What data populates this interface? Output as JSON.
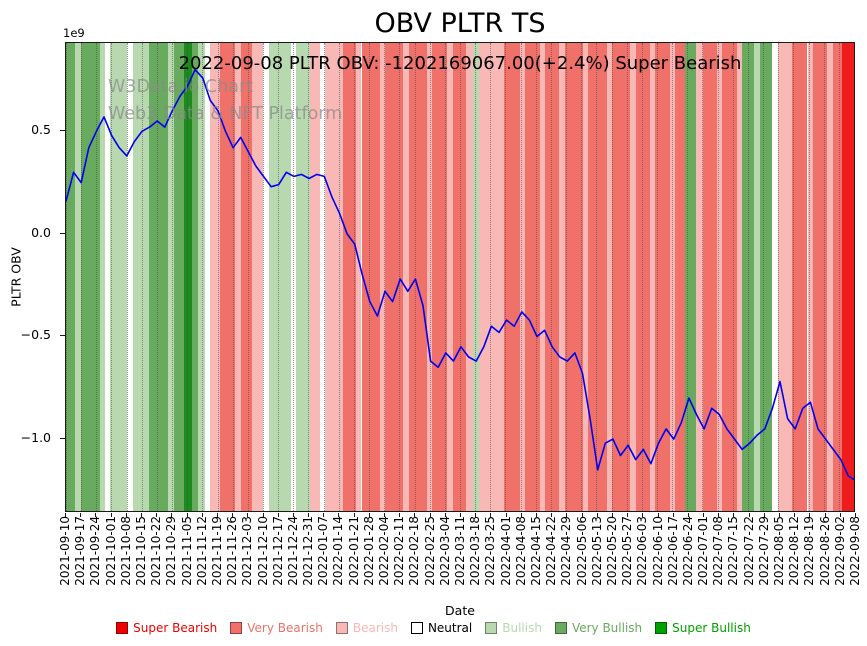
{
  "title": "OBV PLTR TS",
  "subtitle": "2022-09-08 PLTR OBV: -1202169067.00(+2.4%) Super Bearish",
  "watermark": {
    "line1": "W3Data.io Chart",
    "line2": "Web3 Data & NFT Platform"
  },
  "axes": {
    "ylabel": "PLTR OBV",
    "xlabel": "Date",
    "offset_text": "1e9"
  },
  "legend": [
    {
      "label": "Super Bearish",
      "color": "#ee0000"
    },
    {
      "label": "Very Bearish",
      "color": "#ef716a"
    },
    {
      "label": "Bearish",
      "color": "#f8b8b5"
    },
    {
      "label": "Neutral",
      "color": "#ffffff",
      "text_color": "#000000",
      "border": "#000000"
    },
    {
      "label": "Bullish",
      "color": "#b8d8b0"
    },
    {
      "label": "Very Bullish",
      "color": "#68aa5e"
    },
    {
      "label": "Super Bullish",
      "color": "#00a000"
    }
  ],
  "chart_data": {
    "type": "line",
    "title": "OBV PLTR TS",
    "series_name": "PLTR OBV",
    "line_color": "#0000f0",
    "unit_multiplier": "1e9",
    "ylim": [
      -1.36,
      0.93
    ],
    "yticks": [
      {
        "label": "0.5",
        "value": 0.5
      },
      {
        "label": "0.0",
        "value": 0.0
      },
      {
        "label": "−0.5",
        "value": -0.5
      },
      {
        "label": "−1.0",
        "value": -1.0
      }
    ],
    "x_tick_labels": [
      "2021-09-10",
      "2021-09-17",
      "2021-09-24",
      "2021-10-01",
      "2021-10-08",
      "2021-10-15",
      "2021-10-22",
      "2021-10-29",
      "2021-11-05",
      "2021-11-12",
      "2021-11-19",
      "2021-11-26",
      "2021-12-03",
      "2021-12-10",
      "2021-12-17",
      "2021-12-24",
      "2021-12-31",
      "2022-01-07",
      "2022-01-14",
      "2022-01-21",
      "2022-01-28",
      "2022-02-04",
      "2022-02-11",
      "2022-02-18",
      "2022-02-25",
      "2022-03-04",
      "2022-03-11",
      "2022-03-18",
      "2022-03-25",
      "2022-04-01",
      "2022-04-08",
      "2022-04-15",
      "2022-04-22",
      "2022-04-29",
      "2022-05-06",
      "2022-05-13",
      "2022-05-20",
      "2022-05-27",
      "2022-06-03",
      "2022-06-10",
      "2022-06-17",
      "2022-06-24",
      "2022-07-01",
      "2022-07-08",
      "2022-07-15",
      "2022-07-22",
      "2022-07-29",
      "2022-08-05",
      "2022-08-12",
      "2022-08-19",
      "2022-08-26",
      "2022-09-02",
      "2022-09-08"
    ],
    "values_unit_1e9": [
      0.16,
      0.3,
      0.25,
      0.42,
      0.5,
      0.57,
      0.48,
      0.42,
      0.38,
      0.45,
      0.5,
      0.52,
      0.55,
      0.52,
      0.6,
      0.67,
      0.72,
      0.8,
      0.76,
      0.65,
      0.6,
      0.5,
      0.42,
      0.47,
      0.4,
      0.33,
      0.28,
      0.23,
      0.24,
      0.3,
      0.28,
      0.29,
      0.27,
      0.29,
      0.28,
      0.18,
      0.1,
      0.0,
      -0.05,
      -0.2,
      -0.33,
      -0.4,
      -0.28,
      -0.33,
      -0.22,
      -0.28,
      -0.22,
      -0.35,
      -0.62,
      -0.65,
      -0.58,
      -0.62,
      -0.55,
      -0.6,
      -0.62,
      -0.55,
      -0.45,
      -0.48,
      -0.42,
      -0.45,
      -0.38,
      -0.42,
      -0.5,
      -0.47,
      -0.55,
      -0.6,
      -0.62,
      -0.58,
      -0.68,
      -0.9,
      -1.15,
      -1.02,
      -1.0,
      -1.08,
      -1.03,
      -1.1,
      -1.05,
      -1.12,
      -1.02,
      -0.95,
      -1.0,
      -0.92,
      -0.8,
      -0.88,
      -0.95,
      -0.85,
      -0.88,
      -0.95,
      -1.0,
      -1.05,
      -1.02,
      -0.98,
      -0.95,
      -0.85,
      -0.72,
      -0.9,
      -0.95,
      -0.85,
      -0.82,
      -0.95,
      -1.0,
      -1.05,
      -1.1,
      -1.18,
      -1.202
    ],
    "last_value": -1202169067.0,
    "last_change_pct": "+2.4%",
    "last_signal": "Super Bearish",
    "band_colors": {
      "super_bearish": "#ee1c1c",
      "very_bearish": "#ef716a",
      "bearish": "#f8b8b5",
      "neutral": "#ffffff",
      "bullish": "#b8d8b0",
      "very_bullish": "#68aa5e",
      "super_bullish": "#1d8a1d"
    },
    "bands": [
      {
        "from": 0.0,
        "to": 0.012,
        "sentiment": "very_bullish"
      },
      {
        "from": 0.012,
        "to": 0.019,
        "sentiment": "bullish"
      },
      {
        "from": 0.019,
        "to": 0.043,
        "sentiment": "very_bullish"
      },
      {
        "from": 0.043,
        "to": 0.05,
        "sentiment": "bullish"
      },
      {
        "from": 0.05,
        "to": 0.056,
        "sentiment": "neutral"
      },
      {
        "from": 0.056,
        "to": 0.078,
        "sentiment": "bullish"
      },
      {
        "from": 0.078,
        "to": 0.085,
        "sentiment": "neutral"
      },
      {
        "from": 0.085,
        "to": 0.105,
        "sentiment": "bullish"
      },
      {
        "from": 0.105,
        "to": 0.13,
        "sentiment": "very_bullish"
      },
      {
        "from": 0.13,
        "to": 0.137,
        "sentiment": "bullish"
      },
      {
        "from": 0.137,
        "to": 0.15,
        "sentiment": "very_bullish"
      },
      {
        "from": 0.15,
        "to": 0.16,
        "sentiment": "super_bullish"
      },
      {
        "from": 0.16,
        "to": 0.168,
        "sentiment": "very_bullish"
      },
      {
        "from": 0.168,
        "to": 0.176,
        "sentiment": "bullish"
      },
      {
        "from": 0.176,
        "to": 0.183,
        "sentiment": "neutral"
      },
      {
        "from": 0.183,
        "to": 0.196,
        "sentiment": "bearish"
      },
      {
        "from": 0.196,
        "to": 0.215,
        "sentiment": "very_bearish"
      },
      {
        "from": 0.215,
        "to": 0.222,
        "sentiment": "bearish"
      },
      {
        "from": 0.222,
        "to": 0.236,
        "sentiment": "very_bearish"
      },
      {
        "from": 0.236,
        "to": 0.25,
        "sentiment": "bearish"
      },
      {
        "from": 0.25,
        "to": 0.258,
        "sentiment": "neutral"
      },
      {
        "from": 0.258,
        "to": 0.285,
        "sentiment": "bullish"
      },
      {
        "from": 0.285,
        "to": 0.292,
        "sentiment": "neutral"
      },
      {
        "from": 0.292,
        "to": 0.31,
        "sentiment": "bullish"
      },
      {
        "from": 0.31,
        "to": 0.322,
        "sentiment": "bearish"
      },
      {
        "from": 0.322,
        "to": 0.329,
        "sentiment": "neutral"
      },
      {
        "from": 0.329,
        "to": 0.352,
        "sentiment": "bearish"
      },
      {
        "from": 0.352,
        "to": 0.368,
        "sentiment": "very_bearish"
      },
      {
        "from": 0.368,
        "to": 0.375,
        "sentiment": "bearish"
      },
      {
        "from": 0.375,
        "to": 0.398,
        "sentiment": "very_bearish"
      },
      {
        "from": 0.398,
        "to": 0.405,
        "sentiment": "bearish"
      },
      {
        "from": 0.405,
        "to": 0.428,
        "sentiment": "very_bearish"
      },
      {
        "from": 0.428,
        "to": 0.435,
        "sentiment": "bearish"
      },
      {
        "from": 0.435,
        "to": 0.458,
        "sentiment": "very_bearish"
      },
      {
        "from": 0.458,
        "to": 0.465,
        "sentiment": "bearish"
      },
      {
        "from": 0.465,
        "to": 0.483,
        "sentiment": "very_bearish"
      },
      {
        "from": 0.483,
        "to": 0.491,
        "sentiment": "bearish"
      },
      {
        "from": 0.491,
        "to": 0.508,
        "sentiment": "very_bearish"
      },
      {
        "from": 0.508,
        "to": 0.516,
        "sentiment": "bearish"
      },
      {
        "from": 0.516,
        "to": 0.524,
        "sentiment": "bullish"
      },
      {
        "from": 0.524,
        "to": 0.556,
        "sentiment": "bearish"
      },
      {
        "from": 0.556,
        "to": 0.576,
        "sentiment": "very_bearish"
      },
      {
        "from": 0.576,
        "to": 0.583,
        "sentiment": "bearish"
      },
      {
        "from": 0.583,
        "to": 0.601,
        "sentiment": "very_bearish"
      },
      {
        "from": 0.601,
        "to": 0.608,
        "sentiment": "bearish"
      },
      {
        "from": 0.608,
        "to": 0.626,
        "sentiment": "very_bearish"
      },
      {
        "from": 0.626,
        "to": 0.633,
        "sentiment": "bearish"
      },
      {
        "from": 0.633,
        "to": 0.656,
        "sentiment": "very_bearish"
      },
      {
        "from": 0.656,
        "to": 0.663,
        "sentiment": "bearish"
      },
      {
        "from": 0.663,
        "to": 0.686,
        "sentiment": "very_bearish"
      },
      {
        "from": 0.686,
        "to": 0.693,
        "sentiment": "bearish"
      },
      {
        "from": 0.693,
        "to": 0.716,
        "sentiment": "very_bearish"
      },
      {
        "from": 0.716,
        "to": 0.723,
        "sentiment": "bearish"
      },
      {
        "from": 0.723,
        "to": 0.741,
        "sentiment": "very_bearish"
      },
      {
        "from": 0.741,
        "to": 0.748,
        "sentiment": "bearish"
      },
      {
        "from": 0.748,
        "to": 0.766,
        "sentiment": "very_bearish"
      },
      {
        "from": 0.766,
        "to": 0.773,
        "sentiment": "bearish"
      },
      {
        "from": 0.773,
        "to": 0.785,
        "sentiment": "very_bearish"
      },
      {
        "from": 0.785,
        "to": 0.8,
        "sentiment": "very_bullish"
      },
      {
        "from": 0.8,
        "to": 0.808,
        "sentiment": "bearish"
      },
      {
        "from": 0.808,
        "to": 0.826,
        "sentiment": "very_bearish"
      },
      {
        "from": 0.826,
        "to": 0.833,
        "sentiment": "bearish"
      },
      {
        "from": 0.833,
        "to": 0.851,
        "sentiment": "very_bearish"
      },
      {
        "from": 0.851,
        "to": 0.858,
        "sentiment": "bearish"
      },
      {
        "from": 0.858,
        "to": 0.873,
        "sentiment": "very_bullish"
      },
      {
        "from": 0.873,
        "to": 0.881,
        "sentiment": "bullish"
      },
      {
        "from": 0.881,
        "to": 0.896,
        "sentiment": "very_bullish"
      },
      {
        "from": 0.896,
        "to": 0.903,
        "sentiment": "neutral"
      },
      {
        "from": 0.903,
        "to": 0.921,
        "sentiment": "bearish"
      },
      {
        "from": 0.921,
        "to": 0.941,
        "sentiment": "very_bearish"
      },
      {
        "from": 0.941,
        "to": 0.948,
        "sentiment": "bearish"
      },
      {
        "from": 0.948,
        "to": 0.966,
        "sentiment": "very_bearish"
      },
      {
        "from": 0.966,
        "to": 0.973,
        "sentiment": "bearish"
      },
      {
        "from": 0.973,
        "to": 0.985,
        "sentiment": "very_bearish"
      },
      {
        "from": 0.985,
        "to": 1.0,
        "sentiment": "super_bearish"
      }
    ],
    "grid": "vertical-dotted",
    "legend_position": "bottom"
  }
}
